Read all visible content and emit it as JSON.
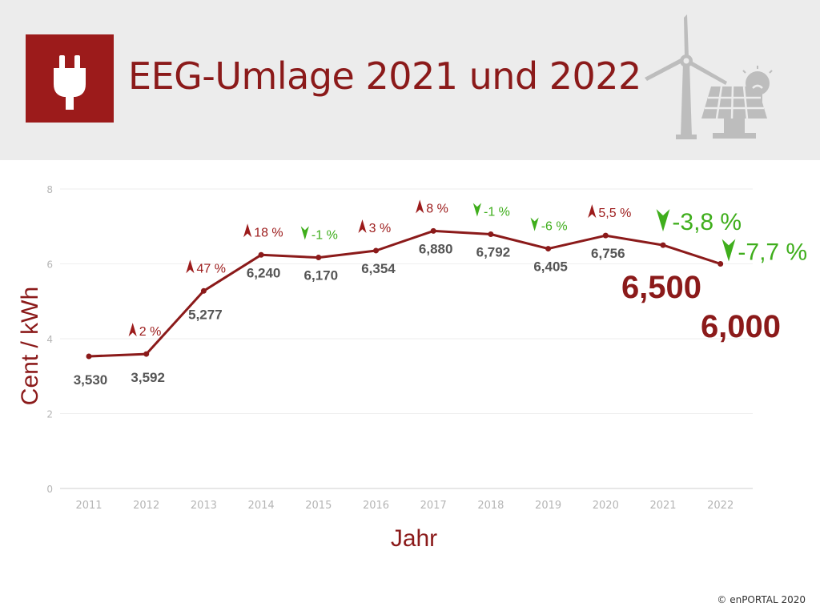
{
  "header": {
    "title": "EEG-Umlage 2021 und 2022",
    "icon": "power-plug-icon",
    "illustration": "wind-turbine-solar-panel-lightbulb-icon",
    "background_color": "#ececec",
    "accent_color": "#9c1b1b"
  },
  "chart_data": {
    "type": "line",
    "xlabel": "Jahr",
    "ylabel": "Cent / kWh",
    "ylim": [
      0,
      8
    ],
    "yticks": [
      0,
      2,
      4,
      6,
      8
    ],
    "grid": true,
    "line_color": "#8b1a1a",
    "up_color": "#9c1b1b",
    "down_color": "#3fae1c",
    "categories": [
      "2011",
      "2012",
      "2013",
      "2014",
      "2015",
      "2016",
      "2017",
      "2018",
      "2019",
      "2020",
      "2021",
      "2022"
    ],
    "values": [
      3.53,
      3.592,
      5.277,
      6.24,
      6.17,
      6.354,
      6.88,
      6.792,
      6.405,
      6.756,
      6.5,
      6.0
    ],
    "value_labels": [
      "3,530",
      "3,592",
      "5,277",
      "6,240",
      "6,170",
      "6,354",
      "6,880",
      "6,792",
      "6,405",
      "6,756",
      "6,500",
      "6,000"
    ],
    "changes": [
      null,
      {
        "text": "2 %",
        "direction": "up"
      },
      {
        "text": "47 %",
        "direction": "up"
      },
      {
        "text": "18 %",
        "direction": "up"
      },
      {
        "text": "-1 %",
        "direction": "down"
      },
      {
        "text": "3 %",
        "direction": "up"
      },
      {
        "text": "8 %",
        "direction": "up"
      },
      {
        "text": "-1 %",
        "direction": "down"
      },
      {
        "text": "-6 %",
        "direction": "down"
      },
      {
        "text": "5,5 %",
        "direction": "up"
      },
      {
        "text": "-3,8 %",
        "direction": "down"
      },
      {
        "text": "-7,7 %",
        "direction": "down"
      }
    ]
  },
  "footer": {
    "copyright": "© enPORTAL 2020"
  }
}
